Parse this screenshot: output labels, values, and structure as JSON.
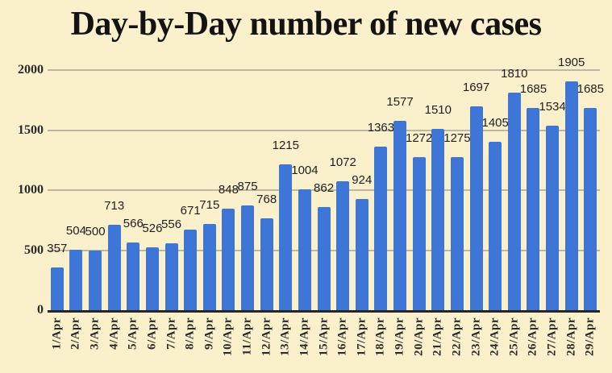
{
  "colors": {
    "background": "#FBF0CC",
    "bar": "#3E76D8",
    "gridline": "#BFB7A3",
    "axis": "#262626",
    "title_text": "#131313",
    "tick_text": "#2A2A2A",
    "value_text": "#1F1F1F"
  },
  "chart_data": {
    "type": "bar",
    "title": "Day-by-Day number of new cases",
    "categories": [
      "1/Apr",
      "2/Apr",
      "3/Apr",
      "4/Apr",
      "5/Apr",
      "6/Apr",
      "7/Apr",
      "8/Apr",
      "9/Apr",
      "10/Apr",
      "11/Apr",
      "12/Apr",
      "13/Apr",
      "14/Apr",
      "15/Apr",
      "16/Apr",
      "17/Apr",
      "18/Apr",
      "19/Apr",
      "20/Apr",
      "21/Apr",
      "22/Apr",
      "23/Apr",
      "24/Apr",
      "25/Apr",
      "26/Apr",
      "27/Apr",
      "28/Apr",
      "29/Apr"
    ],
    "values": [
      357,
      504,
      500,
      713,
      566,
      526,
      556,
      671,
      715,
      848,
      875,
      768,
      1215,
      1004,
      862,
      1072,
      924,
      1363,
      1577,
      1272,
      1510,
      1275,
      1697,
      1405,
      1810,
      1685,
      1534,
      1905,
      1685
    ],
    "xlabel": "",
    "ylabel": "",
    "ylim": [
      0,
      2000
    ],
    "yticks": [
      0,
      500,
      1000,
      1500,
      2000
    ],
    "grid": true,
    "legend": false,
    "value_labels": true,
    "x_tick_rotation": 90
  }
}
